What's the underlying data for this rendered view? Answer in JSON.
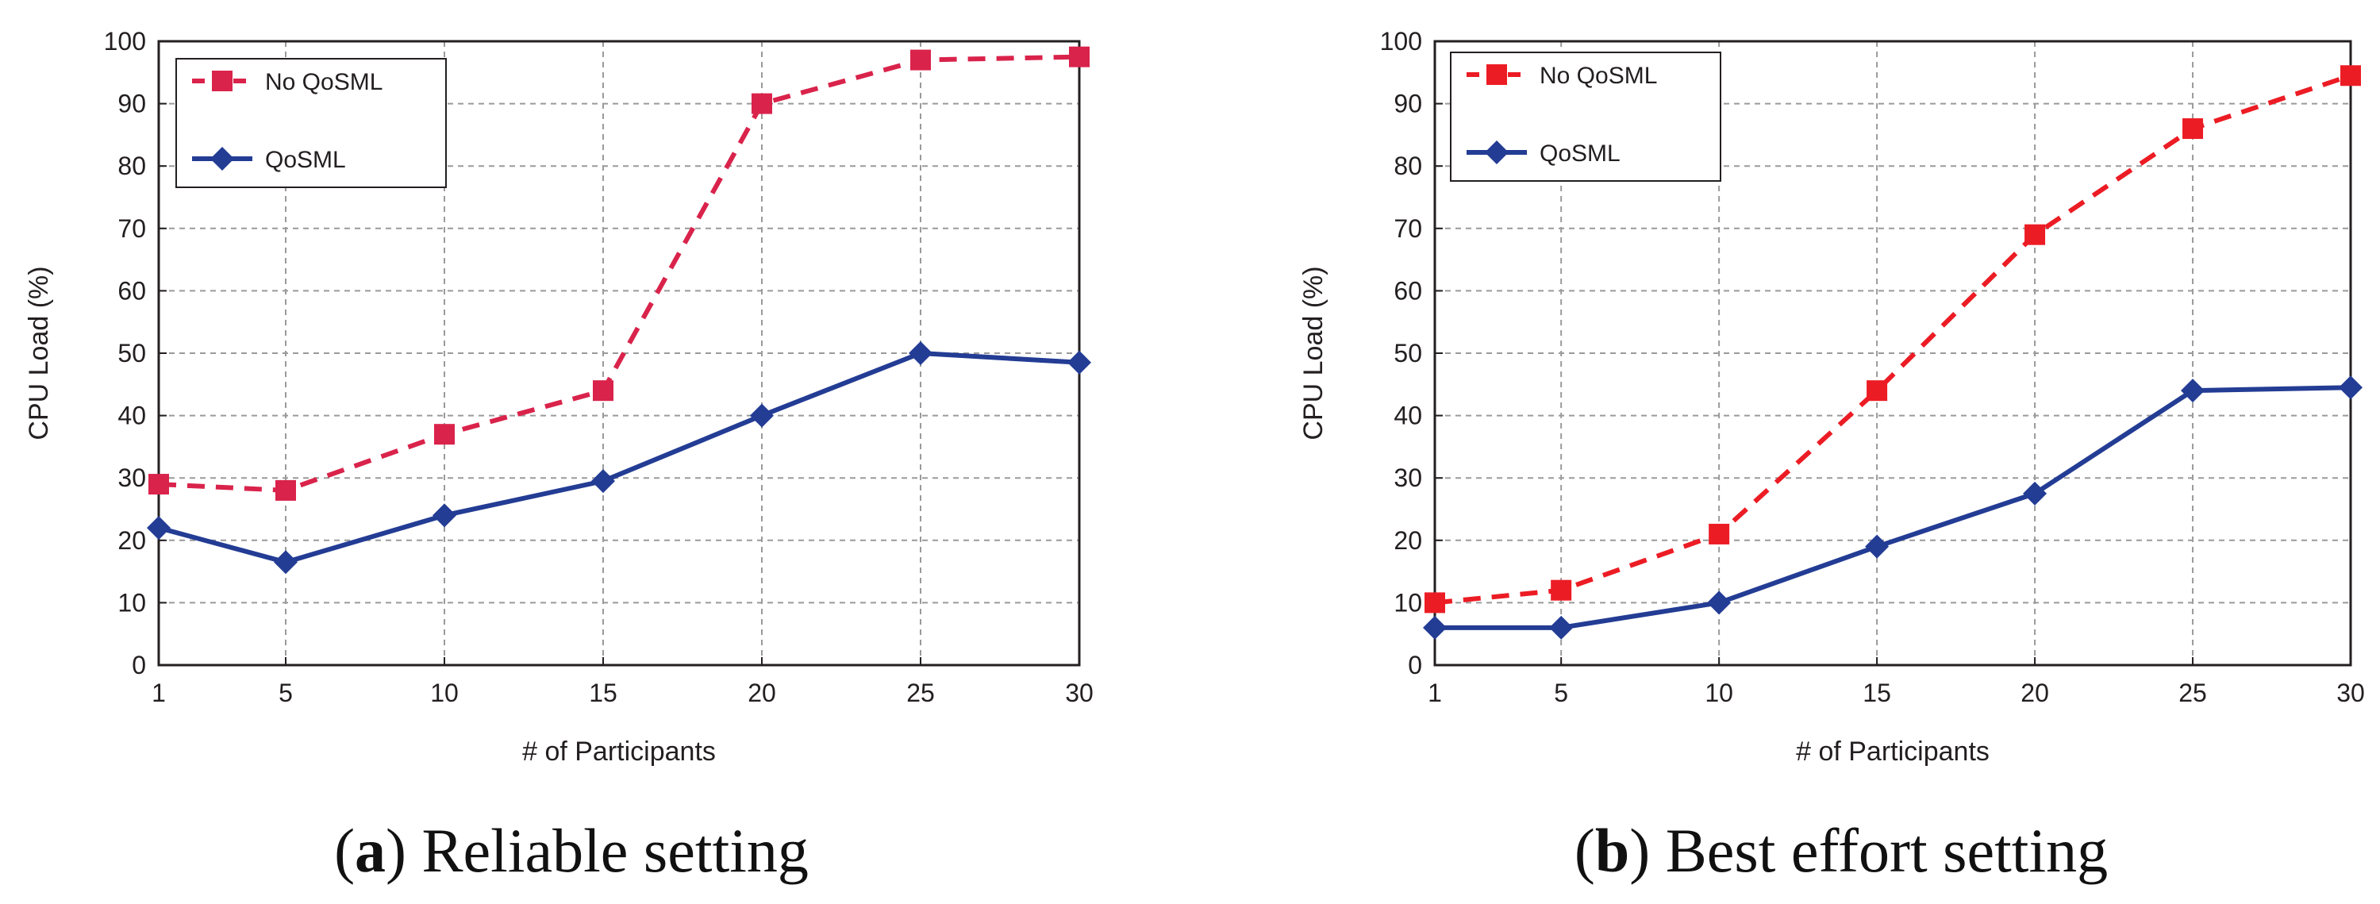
{
  "chart_data": [
    {
      "type": "line",
      "panel": "a",
      "caption": {
        "letter": "a",
        "text": "Reliable setting"
      },
      "xlabel": "#  of Participants",
      "ylabel": "CPU Load   (%)",
      "x": [
        1,
        5,
        10,
        15,
        20,
        25,
        30
      ],
      "xticks": [
        "1",
        "5",
        "10",
        "15",
        "20",
        "25",
        "30"
      ],
      "yticks": [
        "0",
        "10",
        "20",
        "30",
        "40",
        "50",
        "60",
        "70",
        "80",
        "90",
        "100"
      ],
      "ylim": [
        0,
        100
      ],
      "grid": true,
      "legend_position": "top-left",
      "series": [
        {
          "name": "No QoSML",
          "values": [
            29,
            28,
            37,
            44,
            90,
            97,
            97.5
          ],
          "color": "#d9234b",
          "dash": true,
          "marker": "square"
        },
        {
          "name": "QoSML",
          "values": [
            22,
            16.5,
            24,
            29.5,
            40,
            50,
            48.5
          ],
          "color": "#233c94",
          "dash": false,
          "marker": "diamond"
        }
      ]
    },
    {
      "type": "line",
      "panel": "b",
      "caption": {
        "letter": "b",
        "text": "Best effort setting"
      },
      "xlabel": "#  of Participants",
      "ylabel": "CPU Load   (%)",
      "x": [
        1,
        5,
        10,
        15,
        20,
        25,
        30
      ],
      "xticks": [
        "1",
        "5",
        "10",
        "15",
        "20",
        "25",
        "30"
      ],
      "yticks": [
        "0",
        "10",
        "20",
        "30",
        "40",
        "50",
        "60",
        "70",
        "80",
        "90",
        "100"
      ],
      "ylim": [
        0,
        100
      ],
      "grid": true,
      "legend_position": "top-left",
      "series": [
        {
          "name": "No QoSML",
          "values": [
            10,
            12,
            21,
            44,
            69,
            86,
            94.5
          ],
          "color": "#ec1c24",
          "dash": true,
          "marker": "square"
        },
        {
          "name": "QoSML",
          "values": [
            6,
            6,
            10,
            19,
            27.5,
            44,
            44.5
          ],
          "color": "#233c94",
          "dash": false,
          "marker": "diamond"
        }
      ]
    }
  ]
}
